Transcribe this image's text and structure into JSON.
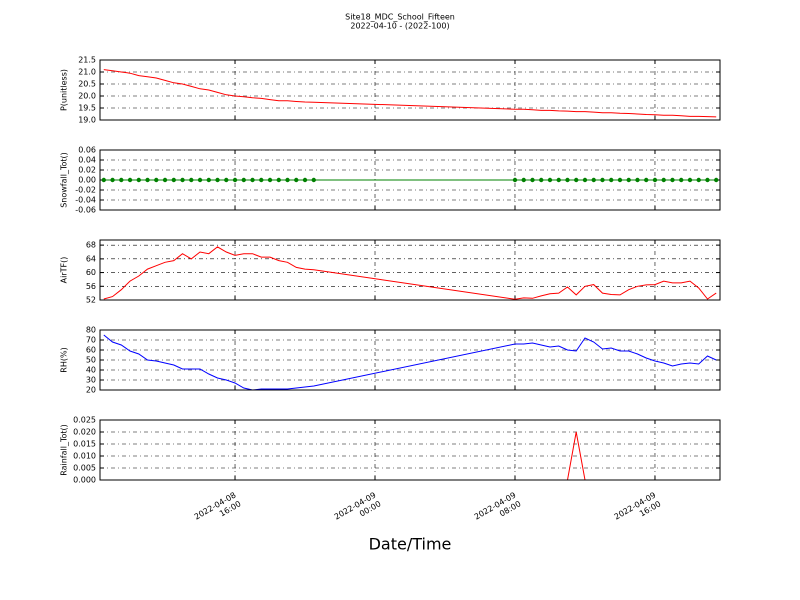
{
  "chart_data": [
    {
      "type": "line",
      "title": "Site18_MDC_School_Fifteen",
      "subtitle": "2022-04-10 - (2022-100)",
      "y_label": "P(unitless)",
      "x": [
        "2022-04-08 08:30",
        "2022-04-08 09:00",
        "2022-04-08 09:30",
        "2022-04-08 10:00",
        "2022-04-08 10:30",
        "2022-04-08 11:00",
        "2022-04-08 11:30",
        "2022-04-08 12:00",
        "2022-04-08 12:30",
        "2022-04-08 13:00",
        "2022-04-08 13:30",
        "2022-04-08 14:00",
        "2022-04-08 14:30",
        "2022-04-08 15:00",
        "2022-04-08 15:30",
        "2022-04-08 16:00",
        "2022-04-08 16:30",
        "2022-04-08 17:00",
        "2022-04-08 17:30",
        "2022-04-08 18:00",
        "2022-04-08 18:30",
        "2022-04-08 19:00",
        "2022-04-08 19:30",
        "2022-04-08 20:00",
        "2022-04-08 20:30",
        "2022-04-09 08:00",
        "2022-04-09 08:30",
        "2022-04-09 09:00",
        "2022-04-09 09:30",
        "2022-04-09 10:00",
        "2022-04-09 10:30",
        "2022-04-09 11:00",
        "2022-04-09 11:30",
        "2022-04-09 12:00",
        "2022-04-09 12:30",
        "2022-04-09 13:00",
        "2022-04-09 13:30",
        "2022-04-09 14:00",
        "2022-04-09 14:30",
        "2022-04-09 15:00",
        "2022-04-09 15:30",
        "2022-04-09 16:00",
        "2022-04-09 16:30",
        "2022-04-09 17:00",
        "2022-04-09 17:30",
        "2022-04-09 18:00",
        "2022-04-09 18:30",
        "2022-04-09 19:00",
        "2022-04-09 19:30"
      ],
      "series": [
        {
          "color": "#ff0000",
          "values": [
            21.1,
            21.05,
            21.0,
            20.95,
            20.85,
            20.8,
            20.75,
            20.65,
            20.55,
            20.5,
            20.4,
            20.3,
            20.25,
            20.15,
            20.05,
            20.0,
            19.97,
            19.93,
            19.9,
            19.85,
            19.8,
            19.8,
            19.77,
            19.75,
            19.74,
            19.45,
            19.45,
            19.43,
            19.4,
            19.4,
            19.38,
            19.37,
            19.35,
            19.35,
            19.33,
            19.3,
            19.3,
            19.28,
            19.27,
            19.25,
            19.23,
            19.22,
            19.2,
            19.2,
            19.18,
            19.15,
            19.15,
            19.14,
            19.13
          ]
        }
      ],
      "ylim": [
        19.0,
        21.5
      ],
      "yticks": [
        {
          "value": 19,
          "label": "19.0"
        },
        19.5,
        {
          "value": 20,
          "label": "20.0"
        },
        20.5,
        {
          "value": 21,
          "label": "21.0"
        },
        21.5
      ],
      "grid": true
    },
    {
      "type": "line",
      "y_label": "Snowfall_Tot()",
      "markers": true,
      "x": [
        "2022-04-08 08:30",
        "2022-04-08 09:00",
        "2022-04-08 09:30",
        "2022-04-08 10:00",
        "2022-04-08 10:30",
        "2022-04-08 11:00",
        "2022-04-08 11:30",
        "2022-04-08 12:00",
        "2022-04-08 12:30",
        "2022-04-08 13:00",
        "2022-04-08 13:30",
        "2022-04-08 14:00",
        "2022-04-08 14:30",
        "2022-04-08 15:00",
        "2022-04-08 15:30",
        "2022-04-08 16:00",
        "2022-04-08 16:30",
        "2022-04-08 17:00",
        "2022-04-08 17:30",
        "2022-04-08 18:00",
        "2022-04-08 18:30",
        "2022-04-08 19:00",
        "2022-04-08 19:30",
        "2022-04-08 20:00",
        "2022-04-08 20:30",
        "2022-04-09 08:00",
        "2022-04-09 08:30",
        "2022-04-09 09:00",
        "2022-04-09 09:30",
        "2022-04-09 10:00",
        "2022-04-09 10:30",
        "2022-04-09 11:00",
        "2022-04-09 11:30",
        "2022-04-09 12:00",
        "2022-04-09 12:30",
        "2022-04-09 13:00",
        "2022-04-09 13:30",
        "2022-04-09 14:00",
        "2022-04-09 14:30",
        "2022-04-09 15:00",
        "2022-04-09 15:30",
        "2022-04-09 16:00",
        "2022-04-09 16:30",
        "2022-04-09 17:00",
        "2022-04-09 17:30",
        "2022-04-09 18:00",
        "2022-04-09 18:30",
        "2022-04-09 19:00",
        "2022-04-09 19:30"
      ],
      "series": [
        {
          "color": "#008000",
          "values": [
            0,
            0,
            0,
            0,
            0,
            0,
            0,
            0,
            0,
            0,
            0,
            0,
            0,
            0,
            0,
            0,
            0,
            0,
            0,
            0,
            0,
            0,
            0,
            0,
            0,
            0,
            0,
            0,
            0,
            0,
            0,
            0,
            0,
            0,
            0,
            0,
            0,
            0,
            0,
            0,
            0,
            0,
            0,
            0,
            0,
            0,
            0,
            0,
            0
          ]
        }
      ],
      "ylim": [
        -0.06,
        0.06
      ],
      "yticks": [
        -0.06,
        -0.04,
        -0.02,
        {
          "value": 0,
          "label": "0.00"
        },
        0.02,
        0.04,
        0.06
      ],
      "grid": true
    },
    {
      "type": "line",
      "y_label": "AirTF()",
      "x": [
        "2022-04-08 08:30",
        "2022-04-08 09:00",
        "2022-04-08 09:30",
        "2022-04-08 10:00",
        "2022-04-08 10:30",
        "2022-04-08 11:00",
        "2022-04-08 11:30",
        "2022-04-08 12:00",
        "2022-04-08 12:30",
        "2022-04-08 13:00",
        "2022-04-08 13:30",
        "2022-04-08 14:00",
        "2022-04-08 14:30",
        "2022-04-08 15:00",
        "2022-04-08 15:30",
        "2022-04-08 16:00",
        "2022-04-08 16:30",
        "2022-04-08 17:00",
        "2022-04-08 17:30",
        "2022-04-08 18:00",
        "2022-04-08 18:30",
        "2022-04-08 19:00",
        "2022-04-08 19:30",
        "2022-04-08 20:00",
        "2022-04-08 20:30",
        "2022-04-09 08:00",
        "2022-04-09 08:30",
        "2022-04-09 09:00",
        "2022-04-09 09:30",
        "2022-04-09 10:00",
        "2022-04-09 10:30",
        "2022-04-09 11:00",
        "2022-04-09 11:30",
        "2022-04-09 12:00",
        "2022-04-09 12:30",
        "2022-04-09 13:00",
        "2022-04-09 13:30",
        "2022-04-09 14:00",
        "2022-04-09 14:30",
        "2022-04-09 15:00",
        "2022-04-09 15:30",
        "2022-04-09 16:00",
        "2022-04-09 16:30",
        "2022-04-09 17:00",
        "2022-04-09 17:30",
        "2022-04-09 18:00",
        "2022-04-09 18:30",
        "2022-04-09 19:00",
        "2022-04-09 19:30"
      ],
      "series": [
        {
          "color": "#ff0000",
          "values": [
            52.3,
            53,
            55,
            57.5,
            59,
            61,
            62,
            63,
            63.5,
            65.5,
            64,
            66,
            65.5,
            67.5,
            66,
            65,
            65.5,
            65.5,
            64.5,
            64.5,
            63.5,
            63,
            61.5,
            61,
            60.8,
            52.2,
            52.6,
            52.5,
            53.2,
            53.8,
            54,
            55.8,
            53.5,
            56,
            56.5,
            54,
            53.6,
            53.5,
            55,
            56,
            56.4,
            56.5,
            57.5,
            57,
            57,
            57.5,
            55.5,
            52.3,
            54
          ]
        }
      ],
      "ylim": [
        52,
        69.5
      ],
      "yticks": [
        52,
        56,
        60,
        64,
        68
      ],
      "grid": true
    },
    {
      "type": "line",
      "y_label": "RH(%)",
      "x": [
        "2022-04-08 08:30",
        "2022-04-08 09:00",
        "2022-04-08 09:30",
        "2022-04-08 10:00",
        "2022-04-08 10:30",
        "2022-04-08 11:00",
        "2022-04-08 11:30",
        "2022-04-08 12:00",
        "2022-04-08 12:30",
        "2022-04-08 13:00",
        "2022-04-08 13:30",
        "2022-04-08 14:00",
        "2022-04-08 14:30",
        "2022-04-08 15:00",
        "2022-04-08 15:30",
        "2022-04-08 16:00",
        "2022-04-08 16:30",
        "2022-04-08 17:00",
        "2022-04-08 17:30",
        "2022-04-08 18:00",
        "2022-04-08 18:30",
        "2022-04-08 19:00",
        "2022-04-08 19:30",
        "2022-04-08 20:00",
        "2022-04-08 20:30",
        "2022-04-09 08:00",
        "2022-04-09 08:30",
        "2022-04-09 09:00",
        "2022-04-09 09:30",
        "2022-04-09 10:00",
        "2022-04-09 10:30",
        "2022-04-09 11:00",
        "2022-04-09 11:30",
        "2022-04-09 12:00",
        "2022-04-09 12:30",
        "2022-04-09 13:00",
        "2022-04-09 13:30",
        "2022-04-09 14:00",
        "2022-04-09 14:30",
        "2022-04-09 15:00",
        "2022-04-09 15:30",
        "2022-04-09 16:00",
        "2022-04-09 16:30",
        "2022-04-09 17:00",
        "2022-04-09 17:30",
        "2022-04-09 18:00",
        "2022-04-09 18:30",
        "2022-04-09 19:00",
        "2022-04-09 19:30"
      ],
      "series": [
        {
          "color": "#0000ff",
          "values": [
            75,
            68,
            65,
            59,
            56,
            50,
            49,
            47,
            45,
            41,
            41,
            41,
            36,
            32,
            30,
            27,
            22,
            20,
            21,
            21,
            21,
            21,
            22,
            23,
            24,
            66,
            66,
            67,
            65,
            63,
            64,
            60,
            59,
            72,
            68,
            61,
            62,
            59,
            59,
            56,
            52,
            49,
            47,
            44,
            46,
            47,
            46,
            54,
            50
          ]
        }
      ],
      "ylim": [
        20,
        80
      ],
      "yticks": [
        20,
        30,
        40,
        50,
        60,
        70,
        80
      ],
      "grid": true
    },
    {
      "type": "line",
      "y_label": "Rainfall_Tot()",
      "x_label": "Date/Time",
      "x": [
        "2022-04-08 08:30",
        "2022-04-08 09:00",
        "2022-04-08 09:30",
        "2022-04-08 10:00",
        "2022-04-08 10:30",
        "2022-04-08 11:00",
        "2022-04-08 11:30",
        "2022-04-08 12:00",
        "2022-04-08 12:30",
        "2022-04-08 13:00",
        "2022-04-08 13:30",
        "2022-04-08 14:00",
        "2022-04-08 14:30",
        "2022-04-08 15:00",
        "2022-04-08 15:30",
        "2022-04-08 16:00",
        "2022-04-08 16:30",
        "2022-04-08 17:00",
        "2022-04-08 17:30",
        "2022-04-08 18:00",
        "2022-04-08 18:30",
        "2022-04-08 19:00",
        "2022-04-08 19:30",
        "2022-04-08 20:00",
        "2022-04-08 20:30",
        "2022-04-09 08:00",
        "2022-04-09 08:30",
        "2022-04-09 09:00",
        "2022-04-09 09:30",
        "2022-04-09 10:00",
        "2022-04-09 10:30",
        "2022-04-09 11:00",
        "2022-04-09 11:30",
        "2022-04-09 12:00",
        "2022-04-09 12:30",
        "2022-04-09 13:00",
        "2022-04-09 13:30",
        "2022-04-09 14:00",
        "2022-04-09 14:30",
        "2022-04-09 15:00",
        "2022-04-09 15:30",
        "2022-04-09 16:00",
        "2022-04-09 16:30",
        "2022-04-09 17:00",
        "2022-04-09 17:30",
        "2022-04-09 18:00",
        "2022-04-09 18:30",
        "2022-04-09 19:00",
        "2022-04-09 19:30"
      ],
      "series": [
        {
          "color": "#ff0000",
          "values": [
            0,
            0,
            0,
            0,
            0,
            0,
            0,
            0,
            0,
            0,
            0,
            0,
            0,
            0,
            0,
            0,
            0,
            0,
            0,
            0,
            0,
            0,
            0,
            0,
            0,
            0,
            0,
            0,
            0,
            0,
            0,
            0,
            0.02,
            0,
            0,
            0,
            0,
            0,
            0,
            0,
            0,
            0,
            0,
            0,
            0,
            0,
            0,
            0,
            0
          ]
        }
      ],
      "ylim": [
        0,
        0.025
      ],
      "yticks": [
        {
          "value": 0,
          "label": "0.000"
        },
        0.005,
        {
          "value": 0.01,
          "label": "0.010"
        },
        0.015,
        {
          "value": 0.02,
          "label": "0.020"
        },
        0.025
      ],
      "xlim": [
        "2022-04-08 08:17",
        "2022-04-09 19:43"
      ],
      "xticks": [
        {
          "value": "2022-04-08 16:00",
          "label": "2022-04-08\n16:00"
        },
        {
          "value": "2022-04-09 00:00",
          "label": "2022-04-09\n00:00"
        },
        {
          "value": "2022-04-09 08:00",
          "label": "2022-04-09\n08:00"
        },
        {
          "value": "2022-04-09 16:00",
          "label": "2022-04-09\n16:00"
        }
      ],
      "grid": true
    }
  ]
}
